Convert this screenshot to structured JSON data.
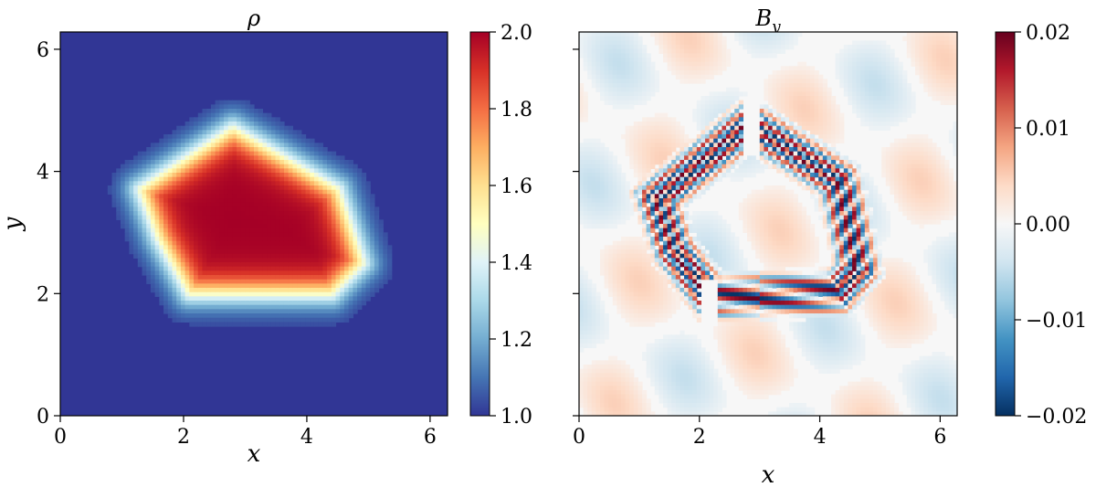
{
  "chart_data": [
    {
      "type": "heatmap",
      "title": "ρ",
      "xlabel": "x",
      "ylabel": "y",
      "xlim": [
        0,
        6.283
      ],
      "ylim": [
        0,
        6.283
      ],
      "xticks": [
        0,
        2,
        4,
        6
      ],
      "yticks": [
        0,
        2,
        4,
        6
      ],
      "xtick_labels": [
        "0",
        "2",
        "4",
        "6"
      ],
      "ytick_labels": [
        "0",
        "2",
        "4",
        "6"
      ],
      "colormap": "RdYlBu_r",
      "colormap_stops": [
        "#313695",
        "#4575b4",
        "#74add1",
        "#abd9e9",
        "#e0f3f8",
        "#ffffbf",
        "#fee090",
        "#fdae61",
        "#f46d43",
        "#d73027",
        "#a50026"
      ],
      "colorbar": {
        "min": 1.0,
        "max": 2.0,
        "ticks": [
          1.0,
          1.2,
          1.4,
          1.6,
          1.8,
          2.0
        ],
        "tick_labels": [
          "1.0",
          "1.2",
          "1.4",
          "1.6",
          "1.8",
          "2.0"
        ]
      },
      "field": {
        "background": 1.0,
        "peak": 2.0,
        "high_region_boundary": [
          [
            1.3,
            3.7
          ],
          [
            2.8,
            4.7
          ],
          [
            4.5,
            3.7
          ],
          [
            4.9,
            2.5
          ],
          [
            4.4,
            2.0
          ],
          [
            2.1,
            2.0
          ],
          [
            1.6,
            2.9
          ]
        ],
        "edge_width": 0.35
      }
    },
    {
      "type": "heatmap",
      "title": "B",
      "title_subscript": "y",
      "xlabel": "x",
      "ylabel": "",
      "xlim": [
        0,
        6.283
      ],
      "ylim": [
        0,
        6.283
      ],
      "xticks": [
        0,
        2,
        4,
        6
      ],
      "xtick_labels": [
        "0",
        "2",
        "4",
        "6"
      ],
      "colormap": "RdBu_r",
      "colormap_stops": [
        "#053061",
        "#2166ac",
        "#4393c3",
        "#92c5de",
        "#d1e5f0",
        "#f7f7f7",
        "#fddbc7",
        "#f4a582",
        "#d6604d",
        "#b2182b",
        "#67001f"
      ],
      "colorbar": {
        "min": -0.02,
        "max": 0.02,
        "ticks": [
          -0.02,
          -0.01,
          0.0,
          0.01,
          0.02
        ],
        "tick_labels": [
          "−0.02",
          "−0.01",
          "0.00",
          "0.01",
          "0.02"
        ]
      },
      "field": {
        "background": 0.0,
        "band_count": 5,
        "band_amplitude": 0.02,
        "ring_boundary": [
          [
            0.8,
            3.7
          ],
          [
            2.8,
            5.3
          ],
          [
            4.7,
            4.1
          ],
          [
            5.1,
            2.3
          ],
          [
            4.5,
            1.6
          ],
          [
            2.0,
            1.5
          ],
          [
            1.2,
            2.5
          ]
        ]
      }
    }
  ]
}
